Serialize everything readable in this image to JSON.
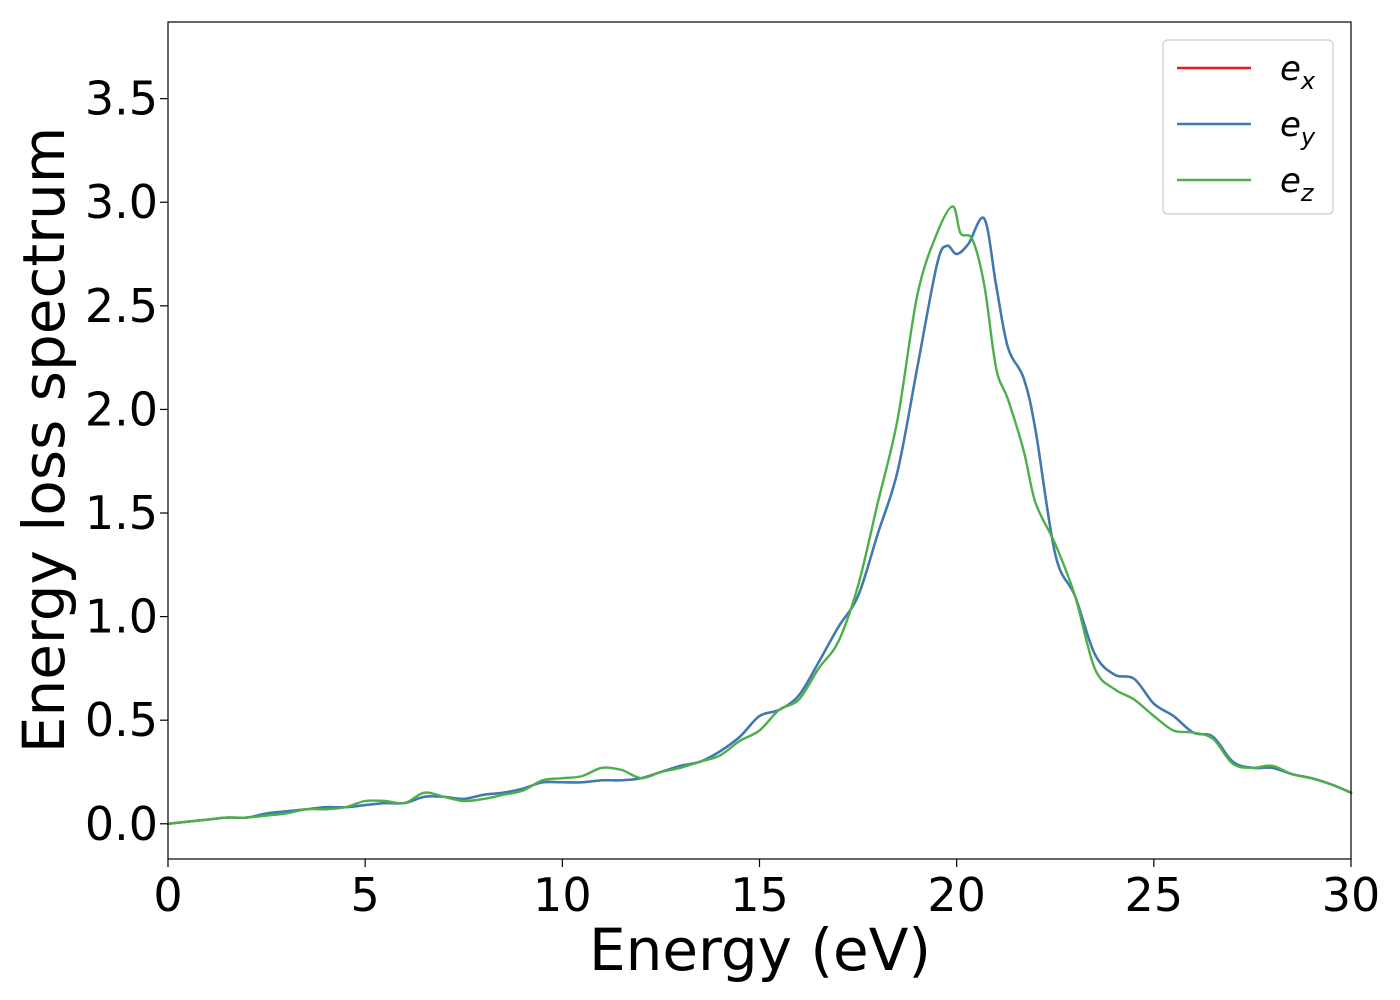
{
  "chart_data": {
    "type": "line",
    "xlabel": "Energy (eV)",
    "ylabel": "Energy loss spectrum",
    "xlim": [
      0,
      30
    ],
    "ylim": [
      -0.17,
      3.87
    ],
    "xticks": [
      0,
      5,
      10,
      15,
      20,
      25,
      30
    ],
    "xtick_labels": [
      "0",
      "5",
      "10",
      "15",
      "20",
      "25",
      "30"
    ],
    "yticks": [
      0.0,
      0.5,
      1.0,
      1.5,
      2.0,
      2.5,
      3.0,
      3.5
    ],
    "ytick_labels": [
      "0.0",
      "0.5",
      "1.0",
      "1.5",
      "2.0",
      "2.5",
      "3.0",
      "3.5"
    ],
    "grid": false,
    "legend_position": "top-right",
    "series": [
      {
        "name": "e_x",
        "legend_base": "e",
        "legend_sub": "x",
        "color": "#e41a1c",
        "x": [
          0,
          0.5,
          1,
          1.5,
          2,
          2.5,
          3,
          3.5,
          4,
          4.5,
          5,
          5.5,
          6,
          6.5,
          7,
          7.5,
          8,
          8.5,
          9,
          9.5,
          10,
          10.5,
          11,
          11.5,
          12,
          12.5,
          13,
          13.5,
          14,
          14.5,
          15,
          15.5,
          16,
          16.5,
          17,
          17.5,
          18,
          18.5,
          19,
          19.5,
          19.75,
          20,
          20.3,
          20.7,
          21,
          21.3,
          21.7,
          22,
          22.5,
          23,
          23.5,
          24,
          24.5,
          25,
          25.5,
          26,
          26.5,
          27,
          27.5,
          28,
          28.5,
          29,
          29.5,
          30
        ],
        "y": [
          0.0,
          0.01,
          0.02,
          0.03,
          0.03,
          0.05,
          0.06,
          0.07,
          0.08,
          0.08,
          0.09,
          0.1,
          0.1,
          0.13,
          0.13,
          0.12,
          0.14,
          0.15,
          0.17,
          0.2,
          0.2,
          0.2,
          0.21,
          0.21,
          0.22,
          0.25,
          0.28,
          0.3,
          0.35,
          0.42,
          0.52,
          0.55,
          0.62,
          0.78,
          0.95,
          1.1,
          1.4,
          1.7,
          2.2,
          2.7,
          2.79,
          2.75,
          2.8,
          2.92,
          2.6,
          2.3,
          2.15,
          1.9,
          1.3,
          1.1,
          0.82,
          0.72,
          0.7,
          0.58,
          0.52,
          0.44,
          0.42,
          0.3,
          0.27,
          0.27,
          0.24,
          0.22,
          0.19,
          0.15
        ]
      },
      {
        "name": "e_y",
        "legend_base": "e",
        "legend_sub": "y",
        "color": "#377eb8",
        "x": [
          0,
          0.5,
          1,
          1.5,
          2,
          2.5,
          3,
          3.5,
          4,
          4.5,
          5,
          5.5,
          6,
          6.5,
          7,
          7.5,
          8,
          8.5,
          9,
          9.5,
          10,
          10.5,
          11,
          11.5,
          12,
          12.5,
          13,
          13.5,
          14,
          14.5,
          15,
          15.5,
          16,
          16.5,
          17,
          17.5,
          18,
          18.5,
          19,
          19.5,
          19.75,
          20,
          20.3,
          20.7,
          21,
          21.3,
          21.7,
          22,
          22.5,
          23,
          23.5,
          24,
          24.5,
          25,
          25.5,
          26,
          26.5,
          27,
          27.5,
          28,
          28.5,
          29,
          29.5,
          30
        ],
        "y": [
          0.0,
          0.01,
          0.02,
          0.03,
          0.03,
          0.05,
          0.06,
          0.07,
          0.08,
          0.08,
          0.09,
          0.1,
          0.1,
          0.13,
          0.13,
          0.12,
          0.14,
          0.15,
          0.17,
          0.2,
          0.2,
          0.2,
          0.21,
          0.21,
          0.22,
          0.25,
          0.28,
          0.3,
          0.35,
          0.42,
          0.52,
          0.55,
          0.62,
          0.78,
          0.95,
          1.1,
          1.4,
          1.7,
          2.2,
          2.7,
          2.79,
          2.75,
          2.8,
          2.92,
          2.6,
          2.3,
          2.15,
          1.9,
          1.3,
          1.1,
          0.82,
          0.72,
          0.7,
          0.58,
          0.52,
          0.44,
          0.42,
          0.3,
          0.27,
          0.27,
          0.24,
          0.22,
          0.19,
          0.15
        ]
      },
      {
        "name": "e_z",
        "legend_base": "e",
        "legend_sub": "z",
        "color": "#4daf4a",
        "x": [
          0,
          0.5,
          1,
          1.5,
          2,
          2.5,
          3,
          3.5,
          4,
          4.5,
          5,
          5.5,
          6,
          6.5,
          7,
          7.5,
          8,
          8.5,
          9,
          9.5,
          10,
          10.5,
          11,
          11.5,
          12,
          12.5,
          13,
          13.5,
          14,
          14.5,
          15,
          15.5,
          16,
          16.5,
          17,
          17.5,
          18,
          18.5,
          19,
          19.5,
          19.9,
          20.1,
          20.4,
          20.7,
          21,
          21.3,
          21.7,
          22,
          22.5,
          23,
          23.5,
          24,
          24.5,
          25,
          25.5,
          26,
          26.5,
          27,
          27.5,
          28,
          28.5,
          29,
          29.5,
          30
        ],
        "y": [
          0.0,
          0.01,
          0.02,
          0.03,
          0.03,
          0.04,
          0.05,
          0.07,
          0.07,
          0.08,
          0.11,
          0.11,
          0.1,
          0.15,
          0.13,
          0.11,
          0.12,
          0.14,
          0.16,
          0.21,
          0.22,
          0.23,
          0.27,
          0.26,
          0.22,
          0.25,
          0.27,
          0.3,
          0.33,
          0.4,
          0.45,
          0.55,
          0.6,
          0.75,
          0.88,
          1.15,
          1.55,
          1.95,
          2.55,
          2.85,
          2.98,
          2.85,
          2.82,
          2.6,
          2.2,
          2.05,
          1.8,
          1.55,
          1.35,
          1.1,
          0.75,
          0.65,
          0.6,
          0.52,
          0.45,
          0.44,
          0.41,
          0.29,
          0.27,
          0.28,
          0.24,
          0.22,
          0.19,
          0.15
        ]
      }
    ]
  }
}
